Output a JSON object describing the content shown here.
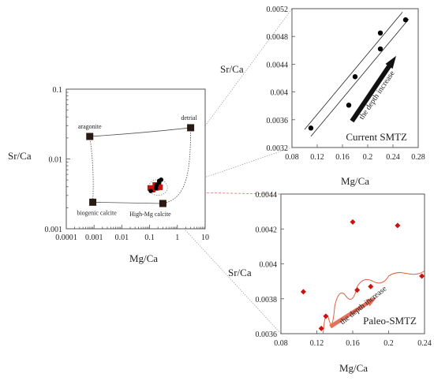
{
  "chart_data": [
    {
      "type": "scatter",
      "panel": "overview",
      "xlabel": "Mg/Ca",
      "ylabel": "Sr/Ca",
      "xscale": "log",
      "yscale": "log",
      "xlim": [
        0.0001,
        10
      ],
      "ylim": [
        0.001,
        0.1
      ],
      "x_ticks": [
        0.0001,
        0.001,
        0.01,
        0.1,
        1,
        10
      ],
      "x_tick_labels": [
        "0.0001",
        "0.001",
        "0.01",
        "0.1",
        "1",
        "10"
      ],
      "y_ticks": [
        0.001,
        0.01,
        0.1
      ],
      "y_tick_labels": [
        "0.001",
        "0.01",
        "0.1"
      ],
      "end_members": [
        {
          "label": "aragonite",
          "x": 0.0007,
          "y": 0.021
        },
        {
          "label": "detrial",
          "x": 3.0,
          "y": 0.028
        },
        {
          "label": "biogenic calcite",
          "x": 0.0009,
          "y": 0.0024
        },
        {
          "label": "High-Mg calcite",
          "x": 0.3,
          "y": 0.0023
        }
      ],
      "current_points": [
        {
          "x": 0.11,
          "y": 0.00348
        },
        {
          "x": 0.17,
          "y": 0.00381
        },
        {
          "x": 0.18,
          "y": 0.00422
        },
        {
          "x": 0.22,
          "y": 0.00462
        },
        {
          "x": 0.22,
          "y": 0.00485
        },
        {
          "x": 0.26,
          "y": 0.00504
        }
      ],
      "paleo_points": [
        {
          "x": 0.105,
          "y": 0.00384
        },
        {
          "x": 0.125,
          "y": 0.00363
        },
        {
          "x": 0.13,
          "y": 0.0037
        },
        {
          "x": 0.16,
          "y": 0.00424
        },
        {
          "x": 0.165,
          "y": 0.00385
        },
        {
          "x": 0.18,
          "y": 0.00387
        },
        {
          "x": 0.21,
          "y": 0.00422
        },
        {
          "x": 0.237,
          "y": 0.00393
        }
      ],
      "current_color": "#000000",
      "paleo_color": "#cc1111",
      "end_member_color": "#2a1a14"
    },
    {
      "type": "scatter",
      "panel": "current",
      "title": "Current SMTZ",
      "annotation": "the depth increase",
      "xlabel": "Mg/Ca",
      "ylabel": "Sr/Ca",
      "xlim": [
        0.08,
        0.28
      ],
      "ylim": [
        0.0032,
        0.0052
      ],
      "x_ticks": [
        0.08,
        0.12,
        0.16,
        0.2,
        0.24,
        0.28
      ],
      "x_tick_labels": [
        "0.08",
        "0.12",
        "0.16",
        "0.2",
        "0.24",
        "0.28"
      ],
      "y_ticks": [
        0.0032,
        0.0036,
        0.004,
        0.0044,
        0.0048,
        0.0052
      ],
      "y_tick_labels": [
        "0.0032",
        "0.0036",
        "0.004",
        "0.0044",
        "0.0048",
        "0.0052"
      ],
      "points": [
        {
          "x": 0.11,
          "y": 0.00348
        },
        {
          "x": 0.17,
          "y": 0.00381
        },
        {
          "x": 0.18,
          "y": 0.00422
        },
        {
          "x": 0.22,
          "y": 0.00462
        },
        {
          "x": 0.22,
          "y": 0.00485
        },
        {
          "x": 0.26,
          "y": 0.00504
        }
      ],
      "trend_lines": [
        [
          [
            0.11,
            0.00336
          ],
          [
            0.265,
            0.00505
          ]
        ],
        [
          [
            0.1,
            0.00346
          ],
          [
            0.255,
            0.00515
          ]
        ]
      ],
      "arrow": {
        "from": [
          0.175,
          0.00358
        ],
        "to": [
          0.245,
          0.00452
        ]
      },
      "point_color": "#000000",
      "arrow_color": "#111111"
    },
    {
      "type": "scatter",
      "panel": "paleo",
      "title": "Paleo-SMTZ",
      "annotation": "the depth increase",
      "xlabel": "Mg/Ca",
      "ylabel": "Sr/Ca",
      "xlim": [
        0.08,
        0.24
      ],
      "ylim": [
        0.0036,
        0.0044
      ],
      "x_ticks": [
        0.08,
        0.12,
        0.16,
        0.2,
        0.24
      ],
      "x_tick_labels": [
        "0.08",
        "0.12",
        "0.16",
        "0.2",
        "0.24"
      ],
      "y_ticks": [
        0.0036,
        0.0038,
        0.004,
        0.0042,
        0.0044
      ],
      "y_tick_labels": [
        "0.0036",
        "0.0038",
        "0.004",
        "0.0042",
        "0.0044"
      ],
      "points": [
        {
          "x": 0.105,
          "y": 0.00384
        },
        {
          "x": 0.125,
          "y": 0.00363
        },
        {
          "x": 0.13,
          "y": 0.0037
        },
        {
          "x": 0.16,
          "y": 0.00424
        },
        {
          "x": 0.165,
          "y": 0.00385
        },
        {
          "x": 0.18,
          "y": 0.00387
        },
        {
          "x": 0.21,
          "y": 0.00422
        },
        {
          "x": 0.237,
          "y": 0.00393
        }
      ],
      "curve": [
        [
          0.127,
          0.0036
        ],
        [
          0.14,
          0.00376
        ],
        [
          0.165,
          0.00387
        ],
        [
          0.2,
          0.00393
        ],
        [
          0.24,
          0.00396
        ]
      ],
      "arrow": {
        "from": [
          0.135,
          0.00364
        ],
        "to": [
          0.187,
          0.00381
        ]
      },
      "point_color": "#cc1111",
      "arrow_color": "#e8705a",
      "curve_color": "#e06040"
    }
  ]
}
